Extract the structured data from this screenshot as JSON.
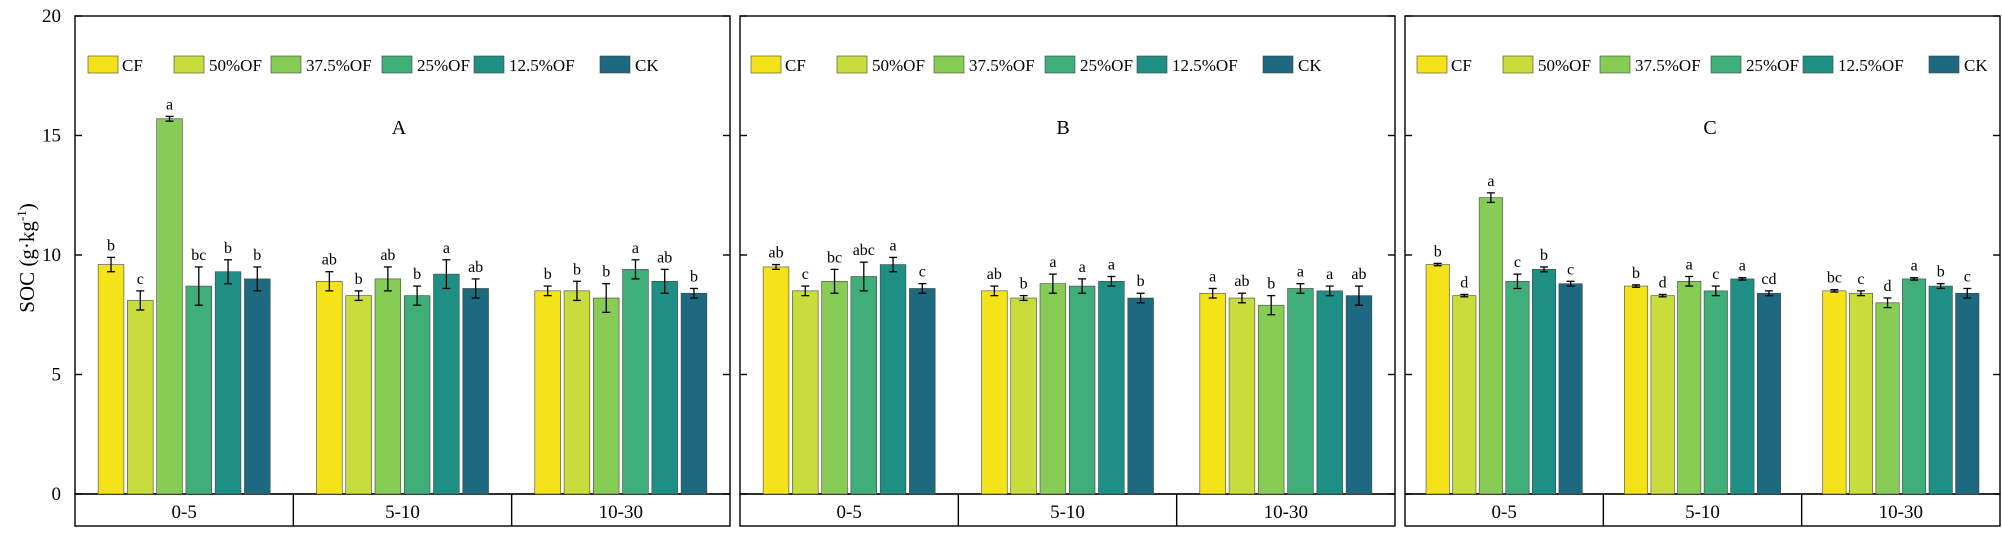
{
  "y_axis": {
    "label": "SOC (g·kg",
    "label_sup": "-1",
    "label_close": ")",
    "ticks": [
      "0",
      "5",
      "10",
      "15",
      "20"
    ]
  },
  "legend_labels": [
    "CF",
    "50%OF",
    "37.5%OF",
    "25%OF",
    "12.5%OF",
    "CK"
  ],
  "chart_data": [
    {
      "type": "bar",
      "title": "A",
      "ylim": [
        0,
        20
      ],
      "xlabel": "",
      "ylabel": "SOC (g·kg-1)",
      "categories": [
        "0-5",
        "5-10",
        "10-30"
      ],
      "series": [
        {
          "name": "CF",
          "color": "#f5e31a",
          "values": [
            9.6,
            8.9,
            8.5
          ],
          "errors": [
            0.3,
            0.4,
            0.2
          ],
          "letters": [
            "b",
            "ab",
            "b"
          ]
        },
        {
          "name": "50%OF",
          "color": "#c8dc3c",
          "values": [
            8.1,
            8.3,
            8.5
          ],
          "errors": [
            0.4,
            0.2,
            0.4
          ],
          "letters": [
            "c",
            "b",
            "b"
          ]
        },
        {
          "name": "37.5%OF",
          "color": "#86cc55",
          "values": [
            15.7,
            9.0,
            8.2
          ],
          "errors": [
            0.1,
            0.5,
            0.6
          ],
          "letters": [
            "a",
            "ab",
            "b"
          ]
        },
        {
          "name": "25%OF",
          "color": "#3fae78",
          "values": [
            8.7,
            8.3,
            9.4
          ],
          "errors": [
            0.8,
            0.4,
            0.4
          ],
          "letters": [
            "bc",
            "b",
            "a"
          ]
        },
        {
          "name": "12.5%OF",
          "color": "#1d8f84",
          "values": [
            9.3,
            9.2,
            8.9
          ],
          "errors": [
            0.5,
            0.6,
            0.5
          ],
          "letters": [
            "b",
            "a",
            "ab"
          ]
        },
        {
          "name": "CK",
          "color": "#1d6a80",
          "values": [
            9.0,
            8.6,
            8.4
          ],
          "errors": [
            0.5,
            0.4,
            0.2
          ],
          "letters": [
            "b",
            "ab",
            "b"
          ]
        }
      ]
    },
    {
      "type": "bar",
      "title": "B",
      "ylim": [
        0,
        20
      ],
      "xlabel": "",
      "ylabel": "SOC (g·kg-1)",
      "categories": [
        "0-5",
        "5-10",
        "10-30"
      ],
      "series": [
        {
          "name": "CF",
          "color": "#f5e31a",
          "values": [
            9.5,
            8.5,
            8.4
          ],
          "errors": [
            0.1,
            0.2,
            0.2
          ],
          "letters": [
            "ab",
            "ab",
            "a"
          ]
        },
        {
          "name": "50%OF",
          "color": "#c8dc3c",
          "values": [
            8.5,
            8.2,
            8.2
          ],
          "errors": [
            0.2,
            0.1,
            0.2
          ],
          "letters": [
            "c",
            "b",
            "ab"
          ]
        },
        {
          "name": "37.5%OF",
          "color": "#86cc55",
          "values": [
            8.9,
            8.8,
            7.9
          ],
          "errors": [
            0.5,
            0.4,
            0.4
          ],
          "letters": [
            "bc",
            "a",
            "b"
          ]
        },
        {
          "name": "25%OF",
          "color": "#3fae78",
          "values": [
            9.1,
            8.7,
            8.6
          ],
          "errors": [
            0.6,
            0.3,
            0.2
          ],
          "letters": [
            "abc",
            "a",
            "a"
          ]
        },
        {
          "name": "12.5%OF",
          "color": "#1d8f84",
          "values": [
            9.6,
            8.9,
            8.5
          ],
          "errors": [
            0.3,
            0.2,
            0.2
          ],
          "letters": [
            "a",
            "a",
            "a"
          ]
        },
        {
          "name": "CK",
          "color": "#1d6a80",
          "values": [
            8.6,
            8.2,
            8.3
          ],
          "errors": [
            0.2,
            0.2,
            0.4
          ],
          "letters": [
            "c",
            "b",
            "ab"
          ]
        }
      ]
    },
    {
      "type": "bar",
      "title": "C",
      "ylim": [
        0,
        20
      ],
      "xlabel": "",
      "ylabel": "SOC (g·kg-1)",
      "categories": [
        "0-5",
        "5-10",
        "10-30"
      ],
      "series": [
        {
          "name": "CF",
          "color": "#f5e31a",
          "values": [
            9.6,
            8.7,
            8.5
          ],
          "errors": [
            0.05,
            0.05,
            0.05
          ],
          "letters": [
            "b",
            "b",
            "bc"
          ]
        },
        {
          "name": "50%OF",
          "color": "#c8dc3c",
          "values": [
            8.3,
            8.3,
            8.4
          ],
          "errors": [
            0.05,
            0.05,
            0.1
          ],
          "letters": [
            "d",
            "d",
            "c"
          ]
        },
        {
          "name": "37.5%OF",
          "color": "#86cc55",
          "values": [
            12.4,
            8.9,
            8.0
          ],
          "errors": [
            0.2,
            0.2,
            0.2
          ],
          "letters": [
            "a",
            "a",
            "d"
          ]
        },
        {
          "name": "25%OF",
          "color": "#3fae78",
          "values": [
            8.9,
            8.5,
            9.0
          ],
          "errors": [
            0.3,
            0.2,
            0.05
          ],
          "letters": [
            "c",
            "c",
            "a"
          ]
        },
        {
          "name": "12.5%OF",
          "color": "#1d8f84",
          "values": [
            9.4,
            9.0,
            8.7
          ],
          "errors": [
            0.1,
            0.05,
            0.1
          ],
          "letters": [
            "b",
            "a",
            "b"
          ]
        },
        {
          "name": "CK",
          "color": "#1d6a80",
          "values": [
            8.8,
            8.4,
            8.4
          ],
          "errors": [
            0.1,
            0.1,
            0.2
          ],
          "letters": [
            "c",
            "cd",
            "c"
          ]
        }
      ]
    }
  ]
}
